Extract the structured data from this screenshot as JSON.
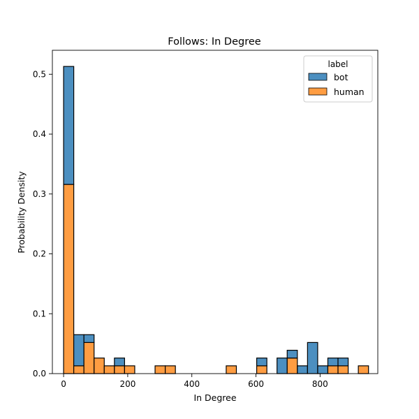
{
  "chart_data": {
    "type": "bar",
    "stacked": true,
    "title": "Follows: In Degree",
    "xlabel": "In Degree",
    "ylabel": "Probability Density",
    "xlim": [
      -35,
      980
    ],
    "ylim": [
      0,
      0.54
    ],
    "xticks": [
      0,
      200,
      400,
      600,
      800
    ],
    "yticks": [
      0.0,
      0.1,
      0.2,
      0.3,
      0.4,
      0.5
    ],
    "xtick_labels": [
      "0",
      "200",
      "400",
      "600",
      "800"
    ],
    "ytick_labels": [
      "0.0",
      "0.1",
      "0.2",
      "0.3",
      "0.4",
      "0.5"
    ],
    "bin_width": 31.7,
    "bin_starts": [
      0.0,
      31.7,
      63.4,
      95.1,
      126.8,
      158.5,
      190.2,
      285.3,
      317.0,
      507.2,
      602.3,
      665.7,
      697.4,
      729.1,
      760.8,
      792.5,
      824.2,
      855.9,
      919.3
    ],
    "series": [
      {
        "name": "human",
        "color": "#ff9d42",
        "values": [
          0.316,
          0.013,
          0.052,
          0.026,
          0.013,
          0.013,
          0.013,
          0.013,
          0.013,
          0.013,
          0.013,
          0.0,
          0.026,
          0.0,
          0.0,
          0.0,
          0.013,
          0.013,
          0.013
        ]
      },
      {
        "name": "bot",
        "color": "#4c8fc0",
        "values": [
          0.197,
          0.052,
          0.013,
          0.0,
          0.0,
          0.013,
          0.0,
          0.0,
          0.0,
          0.0,
          0.013,
          0.026,
          0.013,
          0.013,
          0.052,
          0.013,
          0.013,
          0.013,
          0.0
        ]
      }
    ],
    "legend": {
      "title": "label",
      "placement": "top-right",
      "entries": [
        "bot",
        "human"
      ]
    },
    "grid": false
  }
}
